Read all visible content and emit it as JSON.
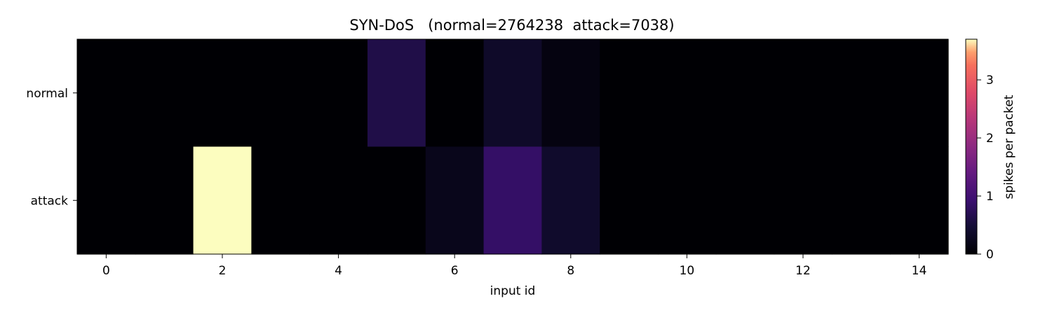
{
  "chart_data": {
    "type": "heatmap",
    "title": "SYN-DoS   (normal=2764238  attack=7038)",
    "xlabel": "input id",
    "ylabel": "",
    "colorbar_label": "spikes per packet",
    "colormap": "magma",
    "rows": [
      "normal",
      "attack"
    ],
    "x": [
      0,
      1,
      2,
      3,
      4,
      5,
      6,
      7,
      8,
      9,
      10,
      11,
      12,
      13,
      14
    ],
    "x_ticks": [
      "0",
      "2",
      "4",
      "6",
      "8",
      "10",
      "12",
      "14"
    ],
    "color_ticks": [
      "0",
      "1",
      "2",
      "3"
    ],
    "color_range": [
      0,
      3.7
    ],
    "values": [
      [
        0,
        0,
        0,
        0,
        0,
        0.62,
        0,
        0.36,
        0.12,
        0,
        0,
        0,
        0,
        0,
        0
      ],
      [
        0,
        0,
        3.7,
        0,
        0,
        0,
        0.22,
        0.85,
        0.38,
        0,
        0,
        0,
        0,
        0,
        0
      ]
    ]
  }
}
